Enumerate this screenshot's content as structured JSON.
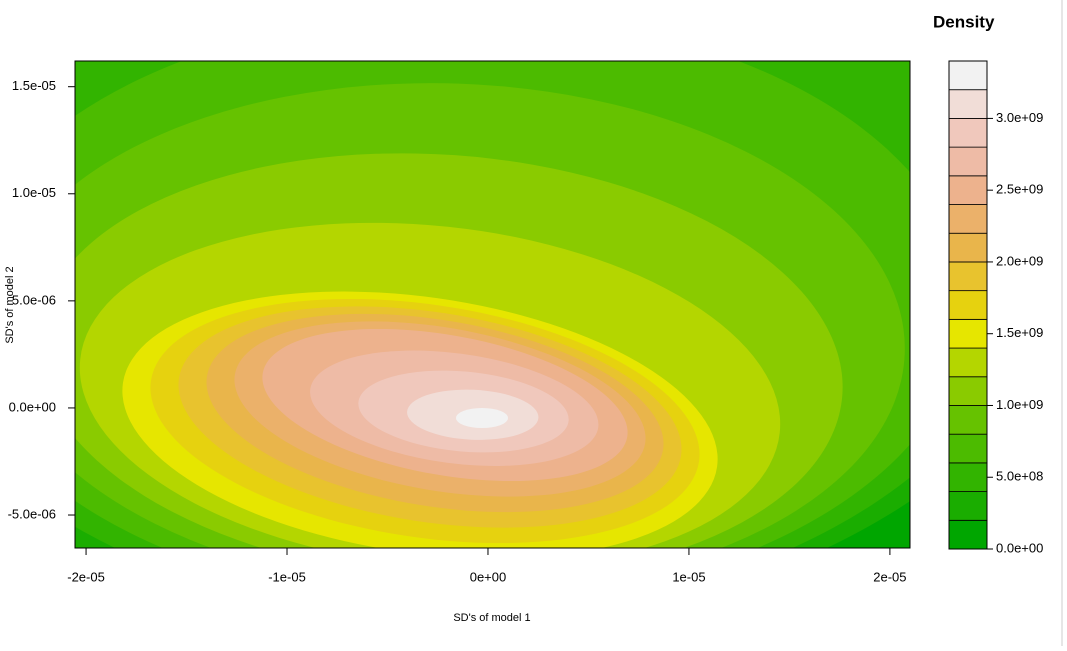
{
  "chart_data": {
    "type": "filled_contour",
    "xlabel": "SD's of model 1",
    "ylabel": "SD's of model 2",
    "legend_title": "Density",
    "xlim": [
      -2.055e-05,
      2.1e-05
    ],
    "ylim": [
      -6.54e-06,
      1.62e-05
    ],
    "xticks": [
      {
        "value": -2e-05,
        "label": "-2e-05"
      },
      {
        "value": -1e-05,
        "label": "-1e-05"
      },
      {
        "value": 0,
        "label": "0e+00"
      },
      {
        "value": 1e-05,
        "label": "1e-05"
      },
      {
        "value": 2e-05,
        "label": "2e-05"
      }
    ],
    "yticks": [
      {
        "value": -5e-06,
        "label": "-5.0e-06"
      },
      {
        "value": 0,
        "label": "0.0e+00"
      },
      {
        "value": 5e-06,
        "label": "5.0e-06"
      },
      {
        "value": 1e-05,
        "label": "1.0e-05"
      },
      {
        "value": 1.5e-05,
        "label": "1.5e-05"
      }
    ],
    "levels": [
      0,
      200000000,
      400000000,
      600000000,
      800000000,
      1000000000,
      1200000000,
      1400000000,
      1600000000,
      1800000000,
      2000000000,
      2200000000,
      2400000000,
      2600000000,
      2800000000,
      3000000000,
      3200000000,
      3400000000
    ],
    "colors": [
      "#00A600",
      "#1AAD00",
      "#32B400",
      "#4CBB00",
      "#66C200",
      "#8ACB00",
      "#B4D600",
      "#E6E600",
      "#E6D20F",
      "#E8C32E",
      "#E9B54B",
      "#EBB16A",
      "#EDB28D",
      "#EEBBA6",
      "#F0C8BC",
      "#F1DDD7",
      "#F2F2F2"
    ],
    "zlim": [
      0,
      3400000000
    ],
    "zticks": [
      {
        "value": 0,
        "label": "0.0e+00"
      },
      {
        "value": 500000000,
        "label": "5.0e+08"
      },
      {
        "value": 1000000000,
        "label": "1.0e+09"
      },
      {
        "value": 1500000000,
        "label": "1.5e+09"
      },
      {
        "value": 2000000000,
        "label": "2.0e+09"
      },
      {
        "value": 2500000000,
        "label": "2.5e+09"
      },
      {
        "value": 3000000000,
        "label": "3.0e+09"
      }
    ]
  }
}
